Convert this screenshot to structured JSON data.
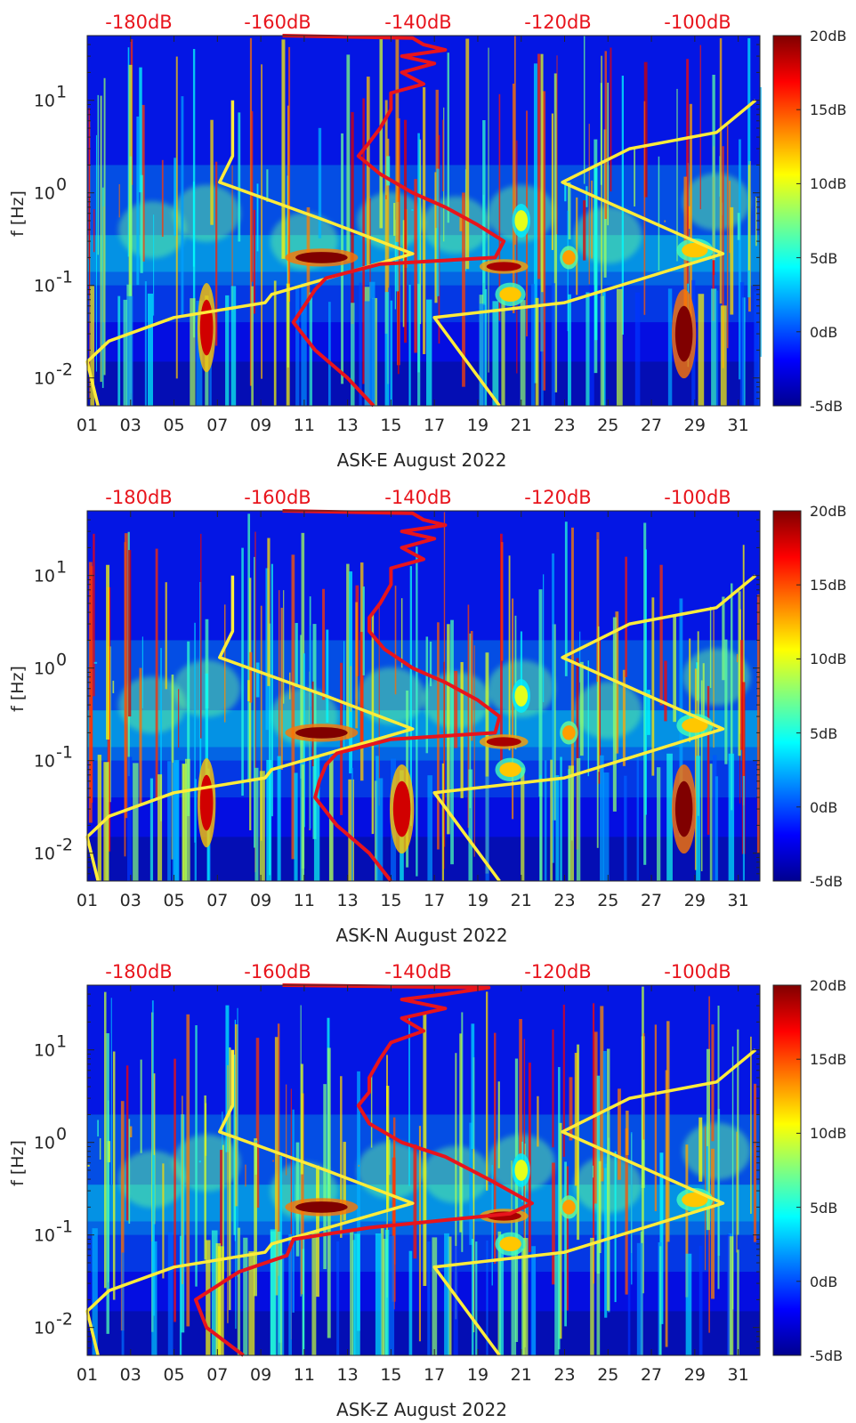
{
  "chart_data": [
    {
      "type": "heatmap",
      "station": "ASK-E",
      "xlabel": "ASK-E August 2022",
      "ylabel": "f [Hz]",
      "x_ticks": [
        "01",
        "03",
        "05",
        "07",
        "09",
        "11",
        "13",
        "15",
        "17",
        "19",
        "21",
        "23",
        "25",
        "27",
        "29",
        "31"
      ],
      "y_ticks": [
        {
          "v": 0.01,
          "base": "10",
          "exp": "-2"
        },
        {
          "v": 0.1,
          "base": "10",
          "exp": "-1"
        },
        {
          "v": 1,
          "base": "10",
          "exp": "0"
        },
        {
          "v": 10,
          "base": "10",
          "exp": "1"
        }
      ],
      "xlim": [
        1,
        32
      ],
      "ylim": [
        0.005,
        50
      ],
      "top_db_labels": [
        "-180dB",
        "-160dB",
        "-140dB",
        "-120dB",
        "-100dB"
      ],
      "colorbar": {
        "labels": [
          "20dB",
          "15dB",
          "10dB",
          "5dB",
          "0dB",
          "-5dB"
        ],
        "values": [
          20,
          15,
          10,
          5,
          0,
          -5
        ],
        "range": [
          -5,
          20
        ]
      },
      "yellow_left": [
        [
          7.7,
          10
        ],
        [
          7.7,
          2.5
        ],
        [
          7.1,
          1.3
        ],
        [
          12,
          0.5
        ],
        [
          16,
          0.22
        ],
        [
          9.5,
          0.08
        ],
        [
          9.2,
          0.065
        ],
        [
          5,
          0.045
        ],
        [
          2,
          0.025
        ],
        [
          1,
          0.015
        ],
        [
          1.5,
          0.005
        ]
      ],
      "yellow_right": [
        [
          31.8,
          10
        ],
        [
          30,
          4.5
        ],
        [
          26,
          3
        ],
        [
          22.9,
          1.3
        ],
        [
          30.3,
          0.22
        ],
        [
          23,
          0.065
        ],
        [
          17,
          0.045
        ],
        [
          20,
          0.005
        ]
      ],
      "red_curve": [
        [
          10,
          50
        ],
        [
          16,
          47
        ],
        [
          16.5,
          40
        ],
        [
          17.5,
          35
        ],
        [
          15.5,
          30
        ],
        [
          17,
          25
        ],
        [
          15.5,
          20
        ],
        [
          16.5,
          15
        ],
        [
          15,
          12
        ],
        [
          15,
          8
        ],
        [
          14.5,
          5
        ],
        [
          14,
          3.5
        ],
        [
          13.5,
          2.5
        ],
        [
          14.5,
          1.6
        ],
        [
          16,
          1
        ],
        [
          17.5,
          0.7
        ],
        [
          19,
          0.45
        ],
        [
          20.2,
          0.3
        ],
        [
          19.8,
          0.2
        ],
        [
          14.5,
          0.17
        ],
        [
          12,
          0.12
        ],
        [
          11.5,
          0.09
        ],
        [
          11,
          0.06
        ],
        [
          10.5,
          0.04
        ],
        [
          11.5,
          0.02
        ],
        [
          13,
          0.01
        ],
        [
          14.2,
          0.005
        ]
      ],
      "hotspots": [
        {
          "t": 11.8,
          "f": 0.2,
          "dt": 1.2,
          "fr": 1.15,
          "db": 20
        },
        {
          "t": 20.2,
          "f": 0.16,
          "dt": 0.8,
          "fr": 1.12,
          "db": 19
        },
        {
          "t": 21,
          "f": 0.5,
          "dt": 0.3,
          "fr": 1.3,
          "db": 10
        },
        {
          "t": 23.2,
          "f": 0.2,
          "dt": 0.3,
          "fr": 1.2,
          "db": 13
        },
        {
          "t": 29,
          "f": 0.24,
          "dt": 0.6,
          "fr": 1.2,
          "db": 12
        },
        {
          "t": 28.5,
          "f": 0.03,
          "dt": 0.4,
          "fr": 2,
          "db": 20
        },
        {
          "t": 6.5,
          "f": 0.035,
          "dt": 0.3,
          "fr": 2,
          "db": 18
        },
        {
          "t": 20.5,
          "f": 0.08,
          "dt": 0.5,
          "fr": 1.2,
          "db": 12
        }
      ]
    },
    {
      "type": "heatmap",
      "station": "ASK-N",
      "xlabel": "ASK-N August 2022",
      "ylabel": "f [Hz]",
      "x_ticks": [
        "01",
        "03",
        "05",
        "07",
        "09",
        "11",
        "13",
        "15",
        "17",
        "19",
        "21",
        "23",
        "25",
        "27",
        "29",
        "31"
      ],
      "y_ticks": [
        {
          "v": 0.01,
          "base": "10",
          "exp": "-2"
        },
        {
          "v": 0.1,
          "base": "10",
          "exp": "-1"
        },
        {
          "v": 1,
          "base": "10",
          "exp": "0"
        },
        {
          "v": 10,
          "base": "10",
          "exp": "1"
        }
      ],
      "xlim": [
        1,
        32
      ],
      "ylim": [
        0.005,
        50
      ],
      "top_db_labels": [
        "-180dB",
        "-160dB",
        "-140dB",
        "-120dB",
        "-100dB"
      ],
      "colorbar": {
        "labels": [
          "20dB",
          "15dB",
          "10dB",
          "5dB",
          "0dB",
          "-5dB"
        ],
        "values": [
          20,
          15,
          10,
          5,
          0,
          -5
        ],
        "range": [
          -5,
          20
        ]
      },
      "yellow_left": [
        [
          7.7,
          10
        ],
        [
          7.7,
          2.5
        ],
        [
          7.1,
          1.3
        ],
        [
          12,
          0.5
        ],
        [
          16,
          0.22
        ],
        [
          9.5,
          0.08
        ],
        [
          9.2,
          0.065
        ],
        [
          5,
          0.045
        ],
        [
          2,
          0.025
        ],
        [
          1,
          0.015
        ],
        [
          1.5,
          0.005
        ]
      ],
      "yellow_right": [
        [
          31.8,
          10
        ],
        [
          30,
          4.5
        ],
        [
          26,
          3
        ],
        [
          22.9,
          1.3
        ],
        [
          30.3,
          0.22
        ],
        [
          23,
          0.065
        ],
        [
          17,
          0.045
        ],
        [
          20,
          0.005
        ]
      ],
      "red_curve": [
        [
          10,
          50
        ],
        [
          16,
          47
        ],
        [
          16.5,
          40
        ],
        [
          17.5,
          35
        ],
        [
          15.5,
          30
        ],
        [
          17,
          25
        ],
        [
          15.5,
          20
        ],
        [
          16.5,
          15
        ],
        [
          15,
          12
        ],
        [
          15,
          8
        ],
        [
          14.5,
          5
        ],
        [
          14,
          3.5
        ],
        [
          14,
          2.5
        ],
        [
          14.7,
          1.6
        ],
        [
          16,
          1
        ],
        [
          17.5,
          0.7
        ],
        [
          19,
          0.45
        ],
        [
          20,
          0.3
        ],
        [
          19.8,
          0.2
        ],
        [
          15,
          0.17
        ],
        [
          12.5,
          0.12
        ],
        [
          12,
          0.09
        ],
        [
          11.7,
          0.06
        ],
        [
          11.5,
          0.04
        ],
        [
          12.5,
          0.02
        ],
        [
          14,
          0.01
        ],
        [
          15,
          0.005
        ]
      ],
      "hotspots": [
        {
          "t": 11.8,
          "f": 0.2,
          "dt": 1.2,
          "fr": 1.15,
          "db": 20
        },
        {
          "t": 20.2,
          "f": 0.16,
          "dt": 0.8,
          "fr": 1.12,
          "db": 19
        },
        {
          "t": 21,
          "f": 0.5,
          "dt": 0.3,
          "fr": 1.3,
          "db": 10
        },
        {
          "t": 23.2,
          "f": 0.2,
          "dt": 0.3,
          "fr": 1.2,
          "db": 13
        },
        {
          "t": 29,
          "f": 0.24,
          "dt": 0.6,
          "fr": 1.2,
          "db": 12
        },
        {
          "t": 28.5,
          "f": 0.03,
          "dt": 0.4,
          "fr": 2,
          "db": 20
        },
        {
          "t": 6.5,
          "f": 0.035,
          "dt": 0.3,
          "fr": 2,
          "db": 18
        },
        {
          "t": 15.5,
          "f": 0.03,
          "dt": 0.4,
          "fr": 2,
          "db": 18
        },
        {
          "t": 20.5,
          "f": 0.08,
          "dt": 0.5,
          "fr": 1.2,
          "db": 12
        }
      ]
    },
    {
      "type": "heatmap",
      "station": "ASK-Z",
      "xlabel": "ASK-Z August 2022",
      "ylabel": "f [Hz]",
      "x_ticks": [
        "01",
        "03",
        "05",
        "07",
        "09",
        "11",
        "13",
        "15",
        "17",
        "19",
        "21",
        "23",
        "25",
        "27",
        "29",
        "31"
      ],
      "y_ticks": [
        {
          "v": 0.01,
          "base": "10",
          "exp": "-2"
        },
        {
          "v": 0.1,
          "base": "10",
          "exp": "-1"
        },
        {
          "v": 1,
          "base": "10",
          "exp": "0"
        },
        {
          "v": 10,
          "base": "10",
          "exp": "1"
        }
      ],
      "xlim": [
        1,
        32
      ],
      "ylim": [
        0.005,
        50
      ],
      "top_db_labels": [
        "-180dB",
        "-160dB",
        "-140dB",
        "-120dB",
        "-100dB"
      ],
      "colorbar": {
        "labels": [
          "20dB",
          "15dB",
          "10dB",
          "5dB",
          "0dB",
          "-5dB"
        ],
        "values": [
          20,
          15,
          10,
          5,
          0,
          -5
        ],
        "range": [
          -5,
          20
        ]
      },
      "yellow_left": [
        [
          7.7,
          10
        ],
        [
          7.7,
          2.5
        ],
        [
          7.1,
          1.3
        ],
        [
          12,
          0.5
        ],
        [
          16,
          0.22
        ],
        [
          9.5,
          0.08
        ],
        [
          9.2,
          0.065
        ],
        [
          5,
          0.045
        ],
        [
          2,
          0.025
        ],
        [
          1,
          0.015
        ],
        [
          1.5,
          0.005
        ]
      ],
      "yellow_right": [
        [
          31.8,
          10
        ],
        [
          30,
          4.5
        ],
        [
          26,
          3
        ],
        [
          22.9,
          1.3
        ],
        [
          30.3,
          0.22
        ],
        [
          23,
          0.065
        ],
        [
          17,
          0.045
        ],
        [
          20,
          0.005
        ]
      ],
      "red_curve": [
        [
          10,
          50
        ],
        [
          19.5,
          47
        ],
        [
          17.5,
          40
        ],
        [
          15.5,
          35
        ],
        [
          17.5,
          28
        ],
        [
          15.5,
          22
        ],
        [
          16.5,
          16
        ],
        [
          15,
          12
        ],
        [
          14.5,
          8
        ],
        [
          14,
          5
        ],
        [
          14,
          3.5
        ],
        [
          13.5,
          2.5
        ],
        [
          14,
          1.6
        ],
        [
          15.5,
          1
        ],
        [
          17.5,
          0.7
        ],
        [
          19.5,
          0.4
        ],
        [
          21.5,
          0.22
        ],
        [
          20.5,
          0.17
        ],
        [
          14,
          0.12
        ],
        [
          10.5,
          0.09
        ],
        [
          10.2,
          0.06
        ],
        [
          8,
          0.04
        ],
        [
          6,
          0.02
        ],
        [
          6.5,
          0.01
        ],
        [
          8.2,
          0.005
        ]
      ],
      "hotspots": [
        {
          "t": 11.8,
          "f": 0.2,
          "dt": 1.2,
          "fr": 1.15,
          "db": 20
        },
        {
          "t": 20.2,
          "f": 0.16,
          "dt": 0.8,
          "fr": 1.12,
          "db": 19
        },
        {
          "t": 21,
          "f": 0.5,
          "dt": 0.3,
          "fr": 1.3,
          "db": 10
        },
        {
          "t": 23.2,
          "f": 0.2,
          "dt": 0.3,
          "fr": 1.2,
          "db": 13
        },
        {
          "t": 29,
          "f": 0.24,
          "dt": 0.6,
          "fr": 1.2,
          "db": 12
        },
        {
          "t": 20.5,
          "f": 0.08,
          "dt": 0.5,
          "fr": 1.2,
          "db": 12
        }
      ]
    }
  ],
  "colors": {
    "yellow_line": "#ffec3a",
    "red_line": "#e8141c",
    "db_label": "#e8141c",
    "axis": "#262626"
  }
}
